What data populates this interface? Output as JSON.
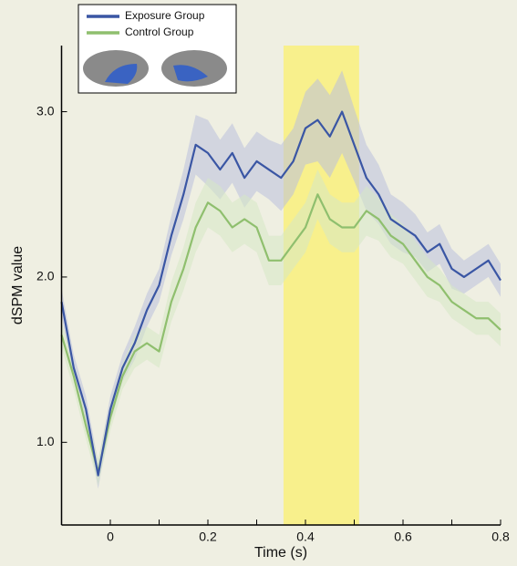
{
  "chart_data": {
    "type": "line",
    "xlabel": "Time (s)",
    "ylabel": "dSPM value",
    "x": [
      -0.1,
      -0.075,
      -0.05,
      -0.025,
      0,
      0.025,
      0.05,
      0.075,
      0.1,
      0.125,
      0.15,
      0.175,
      0.2,
      0.225,
      0.25,
      0.275,
      0.3,
      0.325,
      0.35,
      0.375,
      0.4,
      0.425,
      0.45,
      0.475,
      0.5,
      0.525,
      0.55,
      0.575,
      0.6,
      0.625,
      0.65,
      0.675,
      0.7,
      0.725,
      0.75,
      0.775,
      0.8
    ],
    "series": [
      {
        "name": "Exposure Group",
        "color": "#3a56a4",
        "band_color": "#b9c0dc",
        "values": [
          1.85,
          1.45,
          1.2,
          0.8,
          1.2,
          1.45,
          1.6,
          1.8,
          1.95,
          2.25,
          2.5,
          2.8,
          2.75,
          2.65,
          2.75,
          2.6,
          2.7,
          2.65,
          2.6,
          2.7,
          2.9,
          2.95,
          2.85,
          3.0,
          2.8,
          2.6,
          2.5,
          2.35,
          2.3,
          2.25,
          2.15,
          2.2,
          2.05,
          2.0,
          2.05,
          2.1,
          1.98
        ],
        "errors": [
          0.08,
          0.08,
          0.08,
          0.08,
          0.08,
          0.08,
          0.1,
          0.1,
          0.1,
          0.12,
          0.15,
          0.18,
          0.2,
          0.18,
          0.18,
          0.18,
          0.18,
          0.18,
          0.2,
          0.2,
          0.22,
          0.25,
          0.25,
          0.25,
          0.22,
          0.2,
          0.18,
          0.15,
          0.15,
          0.13,
          0.12,
          0.12,
          0.12,
          0.1,
          0.1,
          0.1,
          0.1
        ]
      },
      {
        "name": "Control Group",
        "color": "#8fbf6e",
        "band_color": "#d6e8c4",
        "values": [
          1.65,
          1.4,
          1.1,
          0.82,
          1.15,
          1.4,
          1.55,
          1.6,
          1.55,
          1.85,
          2.05,
          2.3,
          2.45,
          2.4,
          2.3,
          2.35,
          2.3,
          2.1,
          2.1,
          2.2,
          2.3,
          2.5,
          2.35,
          2.3,
          2.3,
          2.4,
          2.35,
          2.25,
          2.2,
          2.1,
          2.0,
          1.95,
          1.85,
          1.8,
          1.75,
          1.75,
          1.68
        ],
        "errors": [
          0.08,
          0.08,
          0.08,
          0.08,
          0.08,
          0.08,
          0.1,
          0.1,
          0.1,
          0.12,
          0.13,
          0.15,
          0.15,
          0.15,
          0.15,
          0.15,
          0.15,
          0.15,
          0.15,
          0.15,
          0.15,
          0.15,
          0.15,
          0.15,
          0.15,
          0.15,
          0.13,
          0.13,
          0.12,
          0.12,
          0.12,
          0.1,
          0.1,
          0.1,
          0.1,
          0.1,
          0.1
        ]
      }
    ],
    "highlight": [
      0.355,
      0.51
    ],
    "highlight_color": "#f8f08c",
    "xlim": [
      -0.1,
      0.8
    ],
    "ylim": [
      0.5,
      3.4
    ],
    "xticks": [
      0,
      {
        "value": 0.2,
        "label": "0.2"
      },
      {
        "value": 0.4,
        "label": "0.4"
      },
      {
        "value": 0.6,
        "label": "0.6"
      },
      {
        "value": 0.8,
        "label": "0.8"
      }
    ],
    "xminor_ticks": [
      -0.1,
      0.1,
      0.3,
      0.5,
      0.7
    ],
    "yticks": [
      {
        "value": 1,
        "label": "1.0"
      },
      {
        "value": 2,
        "label": "2.0"
      },
      {
        "value": 3,
        "label": "3.0"
      }
    ]
  }
}
